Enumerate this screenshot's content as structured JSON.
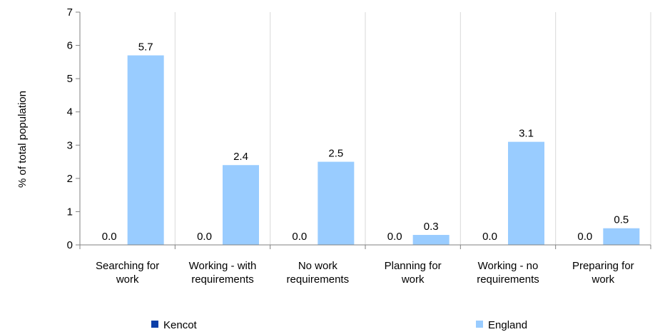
{
  "chart_data": {
    "type": "bar",
    "ylabel": "% of total population",
    "ylim": [
      0,
      7
    ],
    "yticks": [
      0,
      1,
      2,
      3,
      4,
      5,
      6,
      7
    ],
    "grid": "vertical lines between categories",
    "legend_position": "bottom",
    "categories": [
      [
        "Searching for",
        "work"
      ],
      [
        "Working - with",
        "requirements"
      ],
      [
        "No work",
        "requirements"
      ],
      [
        "Planning for",
        "work"
      ],
      [
        "Working - no",
        "requirements"
      ],
      [
        "Preparing for",
        "work"
      ]
    ],
    "series": [
      {
        "name": "Kencot",
        "color": "#0b3ea8",
        "values": [
          0.0,
          0.0,
          0.0,
          0.0,
          0.0,
          0.0
        ],
        "labels": [
          "0.0",
          "0.0",
          "0.0",
          "0.0",
          "0.0",
          "0.0"
        ]
      },
      {
        "name": "England",
        "color": "#99ccff",
        "values": [
          5.7,
          2.4,
          2.5,
          0.3,
          3.1,
          0.5
        ],
        "labels": [
          "5.7",
          "2.4",
          "2.5",
          "0.3",
          "3.1",
          "0.5"
        ]
      }
    ]
  }
}
